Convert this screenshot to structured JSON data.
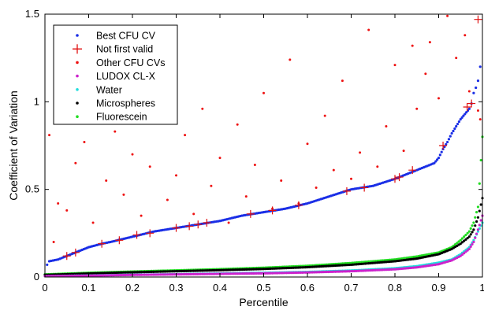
{
  "chart_data": {
    "type": "scatter",
    "xlabel": "Percentile",
    "ylabel": "Coefficient of Variation",
    "xlim": [
      0,
      1
    ],
    "ylim": [
      0,
      1.5
    ],
    "x_ticks": [
      {
        "v": 0,
        "label": "0"
      },
      {
        "v": 0.1,
        "label": "0.1"
      },
      {
        "v": 0.2,
        "label": "0.2"
      },
      {
        "v": 0.3,
        "label": "0.3"
      },
      {
        "v": 0.4,
        "label": "0.4"
      },
      {
        "v": 0.5,
        "label": "0.5"
      },
      {
        "v": 0.6,
        "label": "0.6"
      },
      {
        "v": 0.7,
        "label": "0.7"
      },
      {
        "v": 0.8,
        "label": "0.8"
      },
      {
        "v": 0.9,
        "label": "0.9"
      },
      {
        "v": 1,
        "label": "1"
      }
    ],
    "y_ticks": [
      {
        "v": 0,
        "label": "0"
      },
      {
        "v": 0.5,
        "label": "0.5"
      },
      {
        "v": 1,
        "label": "1"
      },
      {
        "v": 1.5,
        "label": "1.5"
      }
    ],
    "grid": false,
    "legend_position": "top-left",
    "series": [
      {
        "name": "Best CFU CV",
        "color": "#1a2ee6",
        "marker": "dot",
        "points": [
          [
            0.005,
            0.07
          ],
          [
            0.01,
            0.09
          ],
          [
            0.03,
            0.1
          ],
          [
            0.05,
            0.12
          ],
          [
            0.07,
            0.14
          ],
          [
            0.1,
            0.17
          ],
          [
            0.13,
            0.19
          ],
          [
            0.15,
            0.2
          ],
          [
            0.2,
            0.23
          ],
          [
            0.25,
            0.26
          ],
          [
            0.3,
            0.28
          ],
          [
            0.35,
            0.3
          ],
          [
            0.4,
            0.32
          ],
          [
            0.45,
            0.35
          ],
          [
            0.5,
            0.37
          ],
          [
            0.55,
            0.39
          ],
          [
            0.6,
            0.42
          ],
          [
            0.65,
            0.46
          ],
          [
            0.7,
            0.5
          ],
          [
            0.75,
            0.52
          ],
          [
            0.8,
            0.56
          ],
          [
            0.83,
            0.59
          ],
          [
            0.85,
            0.61
          ],
          [
            0.87,
            0.63
          ],
          [
            0.89,
            0.65
          ],
          [
            0.9,
            0.68
          ],
          [
            0.91,
            0.73
          ],
          [
            0.92,
            0.77
          ],
          [
            0.93,
            0.82
          ],
          [
            0.94,
            0.86
          ],
          [
            0.95,
            0.9
          ],
          [
            0.96,
            0.93
          ],
          [
            0.97,
            0.96
          ],
          [
            0.975,
            0.99
          ],
          [
            0.98,
            1.05
          ],
          [
            0.985,
            1.08
          ],
          [
            0.99,
            1.12
          ],
          [
            0.995,
            1.2
          ]
        ]
      },
      {
        "name": "Not first valid",
        "color": "#e01010",
        "marker": "plus",
        "points": [
          [
            0.05,
            0.12
          ],
          [
            0.07,
            0.14
          ],
          [
            0.13,
            0.19
          ],
          [
            0.17,
            0.21
          ],
          [
            0.21,
            0.24
          ],
          [
            0.24,
            0.25
          ],
          [
            0.3,
            0.28
          ],
          [
            0.33,
            0.29
          ],
          [
            0.35,
            0.3
          ],
          [
            0.37,
            0.31
          ],
          [
            0.47,
            0.36
          ],
          [
            0.52,
            0.38
          ],
          [
            0.58,
            0.41
          ],
          [
            0.69,
            0.49
          ],
          [
            0.73,
            0.51
          ],
          [
            0.8,
            0.56
          ],
          [
            0.81,
            0.57
          ],
          [
            0.84,
            0.61
          ],
          [
            0.91,
            0.75
          ],
          [
            0.965,
            0.97
          ],
          [
            0.975,
            0.99
          ],
          [
            0.99,
            1.47
          ]
        ]
      },
      {
        "name": "Other CFU CVs",
        "color": "#ee1111",
        "marker": "dot",
        "points": [
          [
            0.01,
            0.81
          ],
          [
            0.02,
            0.2
          ],
          [
            0.03,
            0.42
          ],
          [
            0.05,
            0.38
          ],
          [
            0.07,
            0.65
          ],
          [
            0.09,
            0.77
          ],
          [
            0.11,
            0.31
          ],
          [
            0.14,
            0.55
          ],
          [
            0.16,
            0.83
          ],
          [
            0.18,
            0.47
          ],
          [
            0.2,
            0.7
          ],
          [
            0.22,
            0.35
          ],
          [
            0.24,
            0.63
          ],
          [
            0.26,
            0.92
          ],
          [
            0.28,
            0.44
          ],
          [
            0.3,
            0.58
          ],
          [
            0.32,
            0.81
          ],
          [
            0.34,
            0.36
          ],
          [
            0.36,
            0.96
          ],
          [
            0.38,
            0.52
          ],
          [
            0.4,
            0.68
          ],
          [
            0.42,
            0.31
          ],
          [
            0.44,
            0.87
          ],
          [
            0.46,
            0.46
          ],
          [
            0.48,
            0.64
          ],
          [
            0.5,
            1.05
          ],
          [
            0.52,
            0.39
          ],
          [
            0.54,
            0.55
          ],
          [
            0.56,
            1.24
          ],
          [
            0.58,
            0.42
          ],
          [
            0.6,
            0.76
          ],
          [
            0.62,
            0.51
          ],
          [
            0.64,
            0.92
          ],
          [
            0.66,
            0.61
          ],
          [
            0.68,
            1.12
          ],
          [
            0.7,
            0.56
          ],
          [
            0.72,
            0.71
          ],
          [
            0.74,
            1.41
          ],
          [
            0.76,
            0.63
          ],
          [
            0.78,
            0.86
          ],
          [
            0.8,
            1.21
          ],
          [
            0.82,
            0.72
          ],
          [
            0.84,
            1.32
          ],
          [
            0.85,
            0.96
          ],
          [
            0.87,
            1.16
          ],
          [
            0.88,
            1.34
          ],
          [
            0.9,
            1.02
          ],
          [
            0.92,
            1.49
          ],
          [
            0.94,
            1.25
          ],
          [
            0.96,
            1.38
          ],
          [
            0.97,
            1.06
          ],
          [
            0.99,
            0.95
          ],
          [
            0.995,
            0.9
          ]
        ]
      },
      {
        "name": "LUDOX CL-X",
        "color": "#cc22cc",
        "marker": "dot",
        "points": [
          [
            0,
            0.005
          ],
          [
            0.1,
            0.008
          ],
          [
            0.2,
            0.012
          ],
          [
            0.3,
            0.015
          ],
          [
            0.4,
            0.018
          ],
          [
            0.5,
            0.021
          ],
          [
            0.6,
            0.026
          ],
          [
            0.7,
            0.033
          ],
          [
            0.8,
            0.044
          ],
          [
            0.85,
            0.055
          ],
          [
            0.9,
            0.073
          ],
          [
            0.93,
            0.095
          ],
          [
            0.95,
            0.12
          ],
          [
            0.97,
            0.16
          ],
          [
            0.98,
            0.2
          ],
          [
            0.99,
            0.27
          ],
          [
            1.0,
            0.35
          ]
        ]
      },
      {
        "name": "Water",
        "color": "#22dddd",
        "marker": "dot",
        "points": [
          [
            0,
            0.005
          ],
          [
            0.1,
            0.009
          ],
          [
            0.2,
            0.013
          ],
          [
            0.3,
            0.016
          ],
          [
            0.4,
            0.02
          ],
          [
            0.5,
            0.024
          ],
          [
            0.6,
            0.029
          ],
          [
            0.7,
            0.037
          ],
          [
            0.8,
            0.05
          ],
          [
            0.85,
            0.062
          ],
          [
            0.9,
            0.082
          ],
          [
            0.93,
            0.1
          ],
          [
            0.95,
            0.13
          ],
          [
            0.97,
            0.17
          ],
          [
            0.98,
            0.21
          ],
          [
            0.99,
            0.26
          ],
          [
            1.0,
            0.31
          ]
        ]
      },
      {
        "name": "Microspheres",
        "color": "#000000",
        "marker": "dot",
        "points": [
          [
            0,
            0.012
          ],
          [
            0.1,
            0.02
          ],
          [
            0.2,
            0.027
          ],
          [
            0.3,
            0.033
          ],
          [
            0.4,
            0.039
          ],
          [
            0.5,
            0.046
          ],
          [
            0.6,
            0.056
          ],
          [
            0.7,
            0.07
          ],
          [
            0.8,
            0.09
          ],
          [
            0.85,
            0.105
          ],
          [
            0.9,
            0.13
          ],
          [
            0.93,
            0.16
          ],
          [
            0.95,
            0.19
          ],
          [
            0.97,
            0.23
          ],
          [
            0.98,
            0.27
          ],
          [
            0.99,
            0.34
          ],
          [
            1.0,
            0.45
          ]
        ]
      },
      {
        "name": "Fluorescein",
        "color": "#22dd22",
        "marker": "dot",
        "points": [
          [
            0,
            0.015
          ],
          [
            0.1,
            0.024
          ],
          [
            0.2,
            0.031
          ],
          [
            0.3,
            0.038
          ],
          [
            0.4,
            0.045
          ],
          [
            0.5,
            0.053
          ],
          [
            0.6,
            0.064
          ],
          [
            0.7,
            0.08
          ],
          [
            0.8,
            0.1
          ],
          [
            0.85,
            0.117
          ],
          [
            0.9,
            0.14
          ],
          [
            0.93,
            0.17
          ],
          [
            0.95,
            0.21
          ],
          [
            0.97,
            0.26
          ],
          [
            0.98,
            0.31
          ],
          [
            0.99,
            0.4
          ],
          [
            1.0,
            0.8
          ]
        ]
      }
    ]
  }
}
